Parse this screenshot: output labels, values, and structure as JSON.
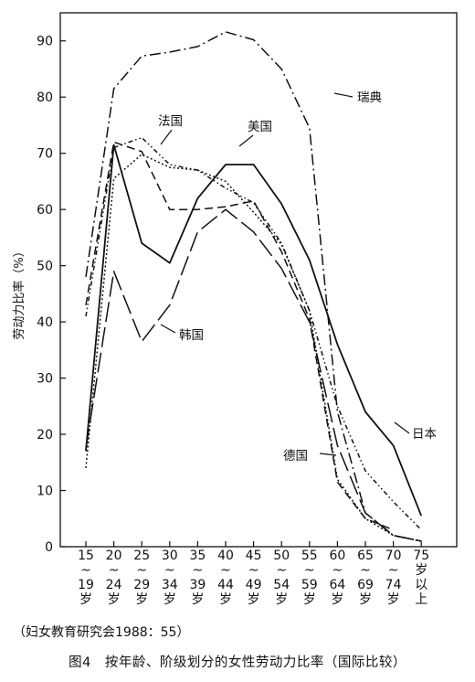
{
  "chart_data": {
    "type": "line",
    "ylabel": "劳动力比率（%）",
    "ylim": [
      0,
      95
    ],
    "yticks": [
      0,
      10,
      20,
      30,
      40,
      50,
      60,
      70,
      80,
      90
    ],
    "categories": [
      [
        "15",
        "~",
        "19",
        "岁"
      ],
      [
        "20",
        "~",
        "24",
        "岁"
      ],
      [
        "25",
        "~",
        "29",
        "岁"
      ],
      [
        "30",
        "~",
        "34",
        "岁"
      ],
      [
        "35",
        "~",
        "39",
        "岁"
      ],
      [
        "40",
        "~",
        "44",
        "岁"
      ],
      [
        "45",
        "~",
        "49",
        "岁"
      ],
      [
        "50",
        "~",
        "54",
        "岁"
      ],
      [
        "55",
        "~",
        "59",
        "岁"
      ],
      [
        "60",
        "~",
        "64",
        "岁"
      ],
      [
        "65",
        "~",
        "69",
        "岁"
      ],
      [
        "70",
        "~",
        "74",
        "岁"
      ],
      [
        "75",
        "岁",
        "以",
        "上"
      ]
    ],
    "series": [
      {
        "name": "瑞典",
        "dash": "12,4,2,4",
        "values": [
          48,
          81.5,
          87.3,
          88,
          89,
          91.6,
          90.2,
          85,
          74.5,
          24,
          6,
          2,
          1
        ]
      },
      {
        "name": "法国",
        "dash": "9,5",
        "values": [
          43,
          72,
          70.3,
          60,
          60,
          60.5,
          61.5,
          52.5,
          40.5,
          11.5,
          5,
          3,
          null
        ]
      },
      {
        "name": "美国",
        "dash": "5,3,1.5,3,1.5,3",
        "values": [
          41,
          71,
          72.8,
          68,
          67,
          63.8,
          61.2,
          54,
          42,
          25,
          13.5,
          8,
          3
        ]
      },
      {
        "name": "德国",
        "dash": "2,2.5",
        "values": [
          14,
          65.5,
          69.8,
          67.5,
          67,
          65,
          59.5,
          53.8,
          42,
          12,
          5,
          2,
          1
        ]
      },
      {
        "name": "日本",
        "dash": "",
        "values": [
          17,
          71.5,
          54,
          50.5,
          62,
          68,
          68,
          61,
          51,
          36,
          24,
          18,
          5.5
        ]
      },
      {
        "name": "韩国",
        "dash": "22,6",
        "values": [
          17.5,
          49,
          36.5,
          43,
          56,
          60,
          56,
          49.5,
          40,
          18,
          6,
          2,
          1
        ]
      }
    ]
  },
  "labels": {
    "sweden": "瑞典",
    "france": "法国",
    "usa": "美国",
    "germany": "德国",
    "japan": "日本",
    "korea": "韩国"
  },
  "source_note": "（妇女教育研究会1988：55）",
  "caption": "图4　按年龄、阶级划分的女性劳动力比率（国际比较）"
}
